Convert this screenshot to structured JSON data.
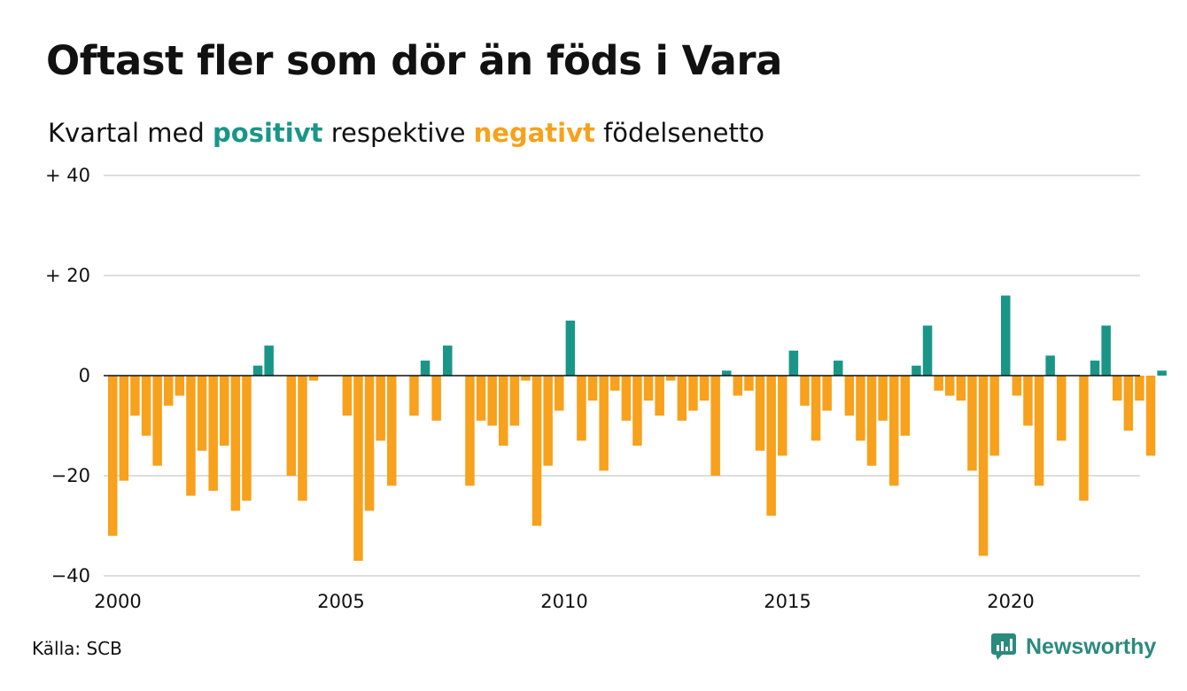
{
  "title": "Oftast fler som dör än föds i Vara",
  "subtitle": {
    "prefix": "Kvartal med",
    "positive_word": "positivt",
    "middle": "respektive",
    "negative_word": "negativt",
    "suffix": "födelsenetto"
  },
  "source": "Källa: SCB",
  "brand": {
    "name": "Newsworthy",
    "logo_icon": "newsworthy-logo-icon"
  },
  "colors": {
    "positive": "#1a9688",
    "negative": "#f7a11c",
    "grid": "#dddddd",
    "axis": "#111111"
  },
  "chart_data": {
    "type": "bar",
    "x_start": 2000,
    "periods_per_year": 4,
    "ylim": [
      -40,
      40
    ],
    "y_ticks": [
      {
        "value": 40,
        "label": "+ 40"
      },
      {
        "value": 20,
        "label": "+ 20"
      },
      {
        "value": 0,
        "label": "0"
      },
      {
        "value": -20,
        "label": "−20"
      },
      {
        "value": -40,
        "label": "−40"
      }
    ],
    "x_ticks": [
      {
        "value": 2000,
        "label": "2000"
      },
      {
        "value": 2005,
        "label": "2005"
      },
      {
        "value": 2010,
        "label": "2010"
      },
      {
        "value": 2015,
        "label": "2015"
      },
      {
        "value": 2020,
        "label": "2020"
      }
    ],
    "grid": true,
    "legend": "none",
    "values": [
      -32,
      -21,
      -8,
      -12,
      -18,
      -6,
      -4,
      -24,
      -15,
      -23,
      -14,
      -27,
      -25,
      2,
      6,
      0,
      -20,
      -25,
      -1,
      0,
      0,
      -8,
      -37,
      -27,
      -13,
      -22,
      0,
      -8,
      3,
      -9,
      6,
      0,
      -22,
      -9,
      -10,
      -14,
      -10,
      -1,
      -30,
      -18,
      -7,
      11,
      -13,
      -5,
      -19,
      -3,
      -9,
      -14,
      -5,
      -8,
      -1,
      -9,
      -7,
      -5,
      -20,
      1,
      -4,
      -3,
      -15,
      -28,
      -16,
      5,
      -6,
      -13,
      -7,
      3,
      -8,
      -13,
      -18,
      -9,
      -22,
      -12,
      2,
      10,
      -3,
      -4,
      -5,
      -19,
      -36,
      -16,
      16,
      -4,
      -10,
      -22,
      4,
      -13,
      0,
      -25,
      3,
      10,
      -5,
      -11,
      -5,
      -16,
      1
    ]
  }
}
